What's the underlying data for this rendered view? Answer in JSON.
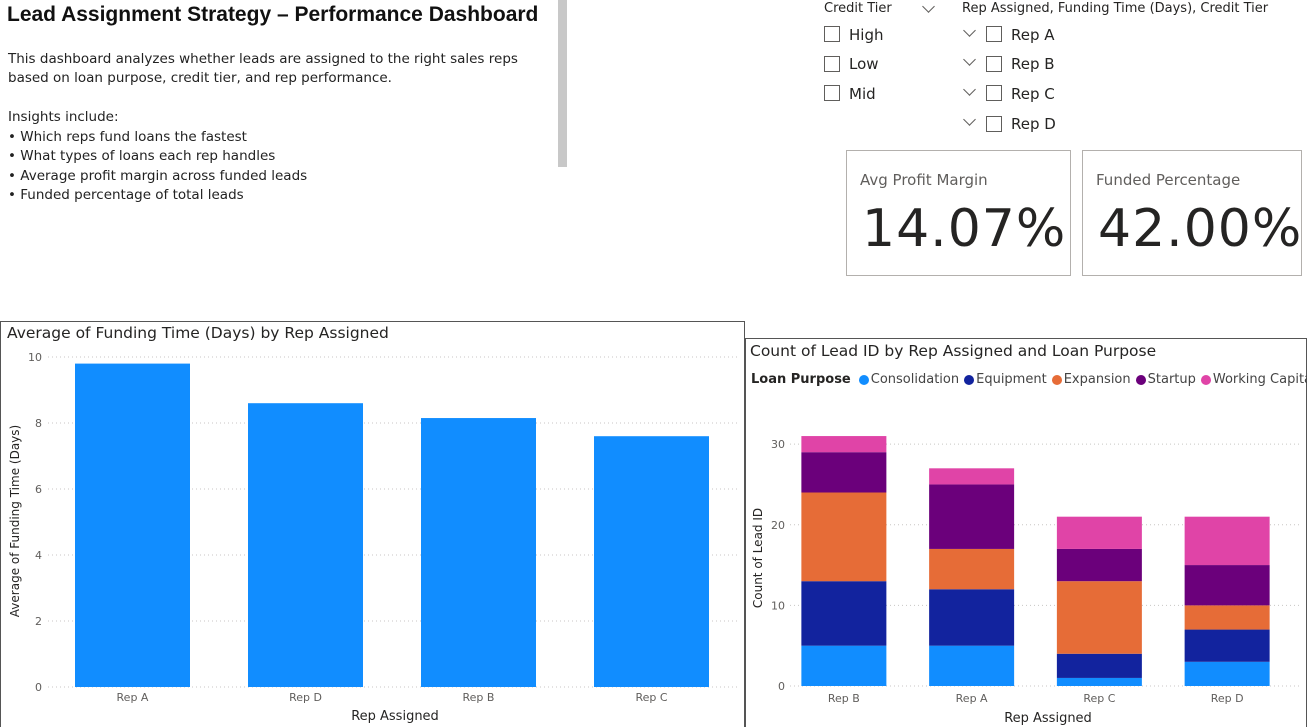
{
  "intro": {
    "title": "Lead Assignment Strategy – Performance Dashboard",
    "description": "This dashboard analyzes whether leads are assigned to the right sales reps based on loan purpose, credit tier, and rep performance.",
    "insights_heading": "Insights include:",
    "insights": [
      "Which reps fund loans the fastest",
      "What types of loans each rep handles",
      "Average profit margin across funded leads",
      "Funded percentage of total leads"
    ]
  },
  "slicer_credit": {
    "header": "Credit Tier",
    "options": [
      "High",
      "Low",
      "Mid"
    ]
  },
  "slicer_rep": {
    "header": "Rep Assigned, Funding Time (Days), Credit Tier",
    "options": [
      "Rep A",
      "Rep B",
      "Rep C",
      "Rep D"
    ]
  },
  "cards": [
    {
      "label": "Avg Profit Margin",
      "value": "14.07%"
    },
    {
      "label": "Funded Percentage",
      "value": "42.00%"
    }
  ],
  "chart_data": [
    {
      "type": "bar",
      "title": "Average of Funding Time (Days) by Rep Assigned",
      "xlabel": "Rep Assigned",
      "ylabel": "Average of Funding Time (Days)",
      "categories": [
        "Rep A",
        "Rep D",
        "Rep B",
        "Rep C"
      ],
      "values": [
        9.8,
        8.6,
        8.15,
        7.6
      ],
      "ylim": [
        0,
        10
      ],
      "yticks": [
        0,
        2,
        4,
        6,
        8,
        10
      ],
      "grid": true,
      "color": "#118DFF"
    },
    {
      "type": "bar",
      "stacked": true,
      "title": "Count of Lead ID by Rep Assigned and Loan Purpose",
      "xlabel": "Rep Assigned",
      "ylabel": "Count of Lead ID",
      "legend_title": "Loan Purpose",
      "legend_position": "top-left",
      "categories": [
        "Rep B",
        "Rep A",
        "Rep C",
        "Rep D"
      ],
      "series": [
        {
          "name": "Consolidation",
          "color": "#118DFF",
          "values": [
            5,
            5,
            1,
            3
          ]
        },
        {
          "name": "Equipment",
          "color": "#12239E",
          "values": [
            8,
            7,
            3,
            4
          ]
        },
        {
          "name": "Expansion",
          "color": "#E66C37",
          "values": [
            11,
            5,
            9,
            3
          ]
        },
        {
          "name": "Startup",
          "color": "#6B007B",
          "values": [
            5,
            8,
            4,
            5
          ]
        },
        {
          "name": "Working Capital",
          "color": "#E044A7",
          "values": [
            2,
            2,
            4,
            6
          ]
        }
      ],
      "ylim": [
        0,
        32
      ],
      "yticks": [
        0,
        10,
        20,
        30
      ],
      "grid": true
    }
  ]
}
